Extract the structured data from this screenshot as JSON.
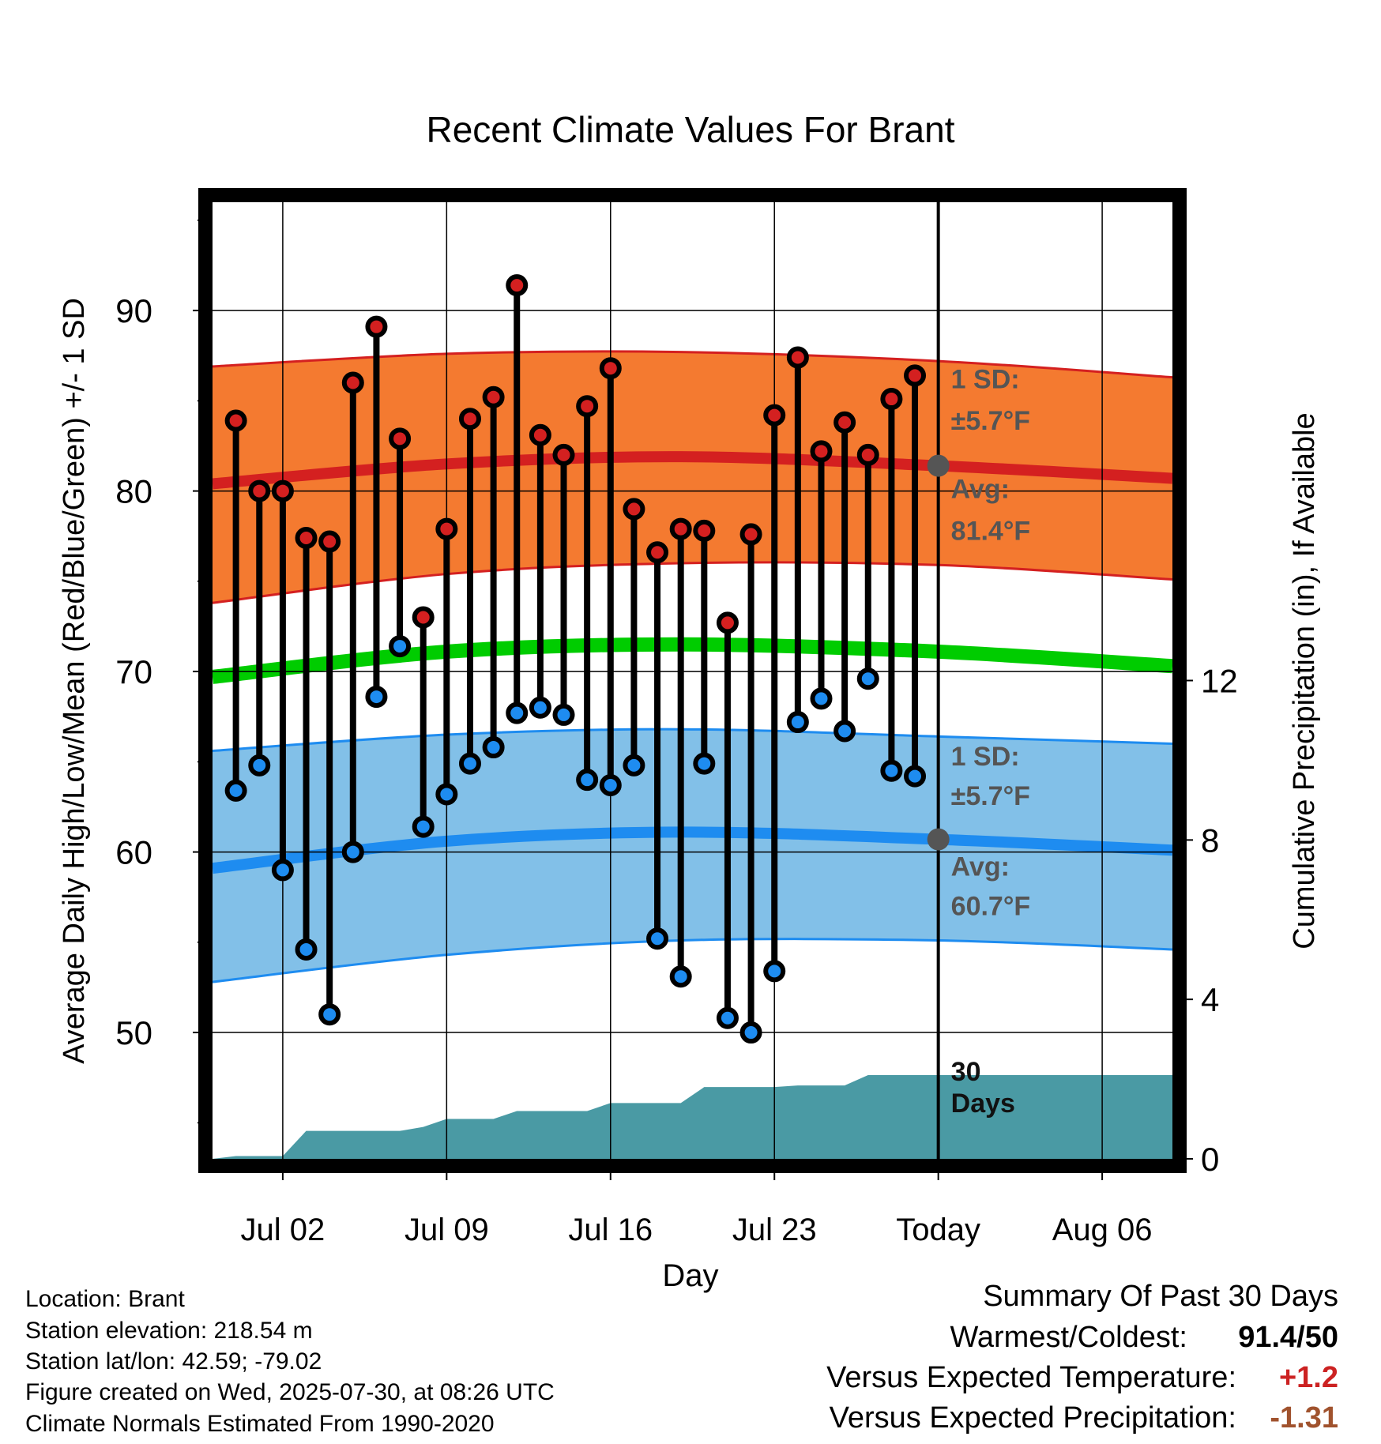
{
  "chart_data": {
    "type": "line",
    "title": "Recent Climate Values For Brant",
    "xlabel": "Day",
    "ylabel_left": "Average Daily High/Low/Mean (Red/Blue/Green) +/- 1 SD",
    "ylabel_right": "Cumulative Precipitation (in), If Available",
    "x_dates": [
      "Jun 30",
      "Jul 01",
      "Jul 02",
      "Jul 03",
      "Jul 04",
      "Jul 05",
      "Jul 06",
      "Jul 07",
      "Jul 08",
      "Jul 09",
      "Jul 10",
      "Jul 11",
      "Jul 12",
      "Jul 13",
      "Jul 14",
      "Jul 15",
      "Jul 16",
      "Jul 17",
      "Jul 18",
      "Jul 19",
      "Jul 20",
      "Jul 21",
      "Jul 22",
      "Jul 23",
      "Jul 24",
      "Jul 25",
      "Jul 26",
      "Jul 27",
      "Jul 28",
      "Jul 29"
    ],
    "x_ticks": [
      "Jul 02",
      "Jul 09",
      "Jul 16",
      "Jul 23",
      "Today",
      "Aug 06"
    ],
    "x_tick_dates": [
      "Jul 02",
      "Jul 09",
      "Jul 16",
      "Jul 23",
      "Jul 30",
      "Aug 06"
    ],
    "x_range": [
      "Jun 29",
      "Aug 09"
    ],
    "ylim_left": [
      43,
      96
    ],
    "yticks_left": [
      50,
      60,
      70,
      80,
      90
    ],
    "ylim_right": [
      0,
      24
    ],
    "yticks_right": [
      0,
      4,
      8,
      12
    ],
    "grid": true,
    "series": [
      {
        "name": "High",
        "values": [
          83.9,
          80.0,
          80.0,
          77.4,
          77.2,
          86.0,
          89.1,
          82.9,
          73.0,
          77.9,
          84.0,
          85.2,
          91.4,
          83.1,
          82.0,
          84.7,
          86.8,
          79.0,
          76.6,
          77.9,
          77.8,
          72.7,
          77.6,
          84.2,
          87.4,
          82.2,
          83.8,
          82.0,
          85.1,
          86.4
        ]
      },
      {
        "name": "Low",
        "values": [
          63.4,
          64.8,
          59.0,
          54.6,
          51.0,
          60.0,
          68.6,
          71.4,
          61.4,
          63.2,
          64.9,
          65.8,
          67.7,
          68.0,
          67.6,
          64.0,
          63.7,
          64.8,
          55.2,
          53.1,
          64.9,
          50.8,
          50.0,
          53.4,
          67.2,
          68.5,
          66.7,
          69.6,
          64.5,
          64.2
        ]
      },
      {
        "name": "Precipitation",
        "values": [
          0.07,
          0.07,
          0.07,
          0.7,
          0.7,
          0.7,
          0.7,
          0.7,
          0.8,
          1.0,
          1.0,
          1.0,
          1.2,
          1.2,
          1.2,
          1.2,
          1.4,
          1.4,
          1.4,
          1.4,
          1.8,
          1.8,
          1.8,
          1.8,
          1.84,
          1.84,
          1.84,
          2.1,
          2.1,
          2.1
        ]
      }
    ],
    "normals": {
      "high_mean": [
        80.4,
        81.5,
        81.9,
        81.4,
        80.7
      ],
      "high_upper": [
        86.9,
        87.6,
        87.7,
        87.2,
        86.3
      ],
      "high_lower": [
        73.8,
        75.4,
        76.0,
        75.9,
        75.1
      ],
      "avg_mean": [
        69.7,
        71.1,
        71.5,
        71.1,
        70.3
      ],
      "low_mean": [
        59.1,
        60.6,
        61.1,
        60.7,
        60.1
      ],
      "low_upper": [
        65.6,
        66.5,
        66.8,
        66.4,
        66.0
      ],
      "low_lower": [
        52.8,
        54.3,
        55.1,
        55.1,
        54.6
      ],
      "normal_dates": [
        "Jun 29",
        "Jul 09",
        "Jul 19",
        "Jul 30",
        "Aug 09"
      ]
    },
    "annotations": {
      "high_sd_label": "1 SD:",
      "high_sd_value": "±5.7°F",
      "high_avg_label": "Avg:",
      "high_avg_value": "81.4°F",
      "low_sd_label": "1 SD:",
      "low_sd_value": "±5.7°F",
      "low_avg_label": "Avg:",
      "low_avg_value": "60.7°F",
      "precip_label_1": "30",
      "precip_label_2": "Days",
      "high_avg_marker": 81.4,
      "low_avg_marker": 60.7
    },
    "colors": {
      "high_band": "#f47a30",
      "high_line": "#d42020",
      "low_band": "#82c0e8",
      "low_line": "#1e8cf0",
      "mean_line": "#00cc00",
      "precip": "#4a9aa4",
      "high_dot": "#d42020",
      "low_dot": "#1e8cf0",
      "annotation_text": "#555555"
    }
  },
  "info": {
    "location": "Location: Brant",
    "elevation": "Station elevation: 218.54 m",
    "latlon": "Station lat/lon: 42.59; -79.02",
    "created": "Figure created on Wed, 2025-07-30, at 08:26 UTC",
    "normals": "Climate Normals Estimated From 1990-2020"
  },
  "summary": {
    "title": "Summary Of Past 30 Days",
    "warm_cold_label": "Warmest/Coldest:",
    "warm_cold_value": "91.4/50",
    "temp_label": "Versus Expected Temperature:",
    "temp_value": "+1.2",
    "temp_color": "#cc2222",
    "precip_label": "Versus Expected Precipitation:",
    "precip_value": "-1.31",
    "precip_color": "#a0522d"
  }
}
